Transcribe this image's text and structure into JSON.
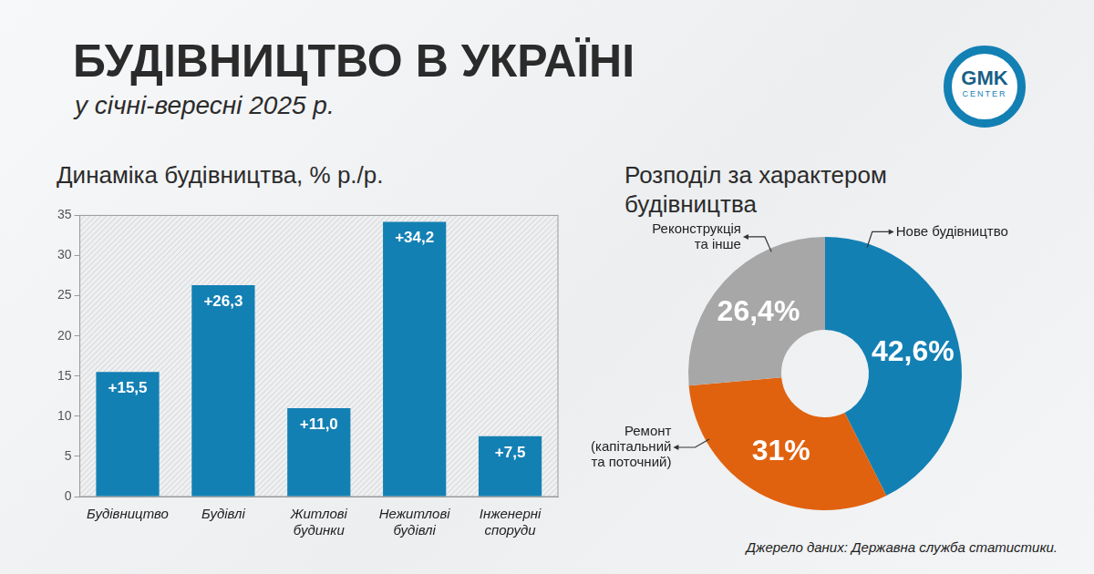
{
  "title": "БУДІВНИЦТВО В УКРАЇНІ",
  "subtitle": "у січні-вересні 2025 р.",
  "logo": {
    "text": "GMK",
    "subtext": "CENTER"
  },
  "source": "Джерело даних: Державна служба статистики.",
  "chart_data": [
    {
      "type": "bar",
      "title": "Динаміка будівництва, % р./р.",
      "categories": [
        "Будівництво",
        "Будівлі",
        "Житлові будинки",
        "Нежитлові будівлі",
        "Інженерні споруди"
      ],
      "values": [
        15.5,
        26.3,
        11.0,
        34.2,
        7.5
      ],
      "value_labels": [
        "+15,5",
        "+26,3",
        "+11,0",
        "+34,2",
        "+7,5"
      ],
      "color": "#1380b4",
      "ylim": [
        0,
        35
      ],
      "yticks": [
        0,
        5,
        10,
        15,
        20,
        25,
        30,
        35
      ],
      "grid": false,
      "data_labels": true
    },
    {
      "type": "doughnut",
      "title": "Розподіл за характером будівництва",
      "categories": [
        "Нове будівництво",
        "Ремонт (капітальний та поточний)",
        "Реконструкція та інше"
      ],
      "values": [
        42.6,
        31,
        26.4
      ],
      "value_labels": [
        "42,6%",
        "31%",
        "26,4%"
      ],
      "colors": [
        "#1380b4",
        "#e0620f",
        "#a7a7a7"
      ],
      "data_labels": true
    }
  ]
}
